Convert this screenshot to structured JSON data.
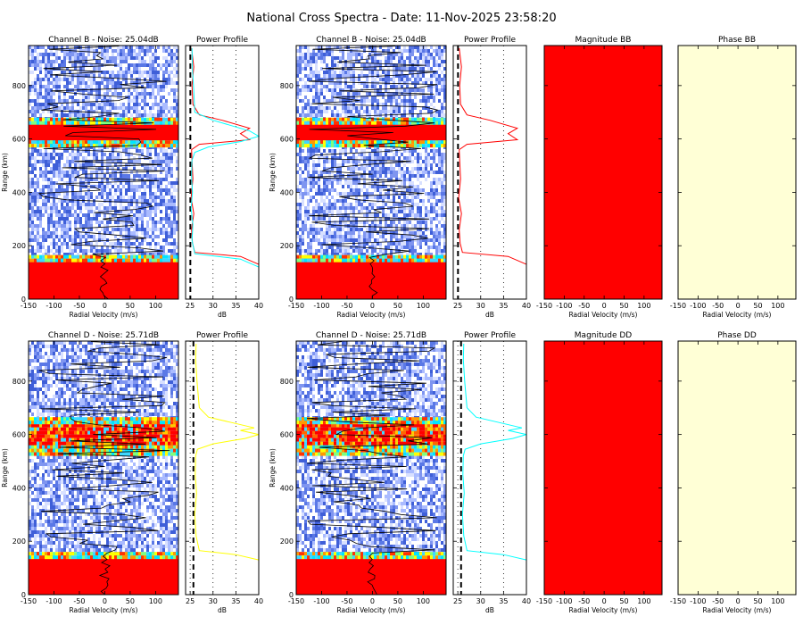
{
  "title": "National Cross Spectra - Date: 11-Nov-2025 23:58:20",
  "chart_data": [
    {
      "type": "heatmap",
      "title": "Channel B - Noise: 25.04dB",
      "xlabel": "Radial Velocity (m/s)",
      "ylabel": "Range (km)",
      "xlim": [
        -150,
        145
      ],
      "ylim": [
        0,
        950
      ],
      "xticks": [
        "-150",
        "-100",
        "-50",
        "0",
        "50",
        "100"
      ],
      "yticks": [
        "0",
        "200",
        "400",
        "600",
        "800"
      ],
      "bands": [
        {
          "from": 0,
          "to": 145,
          "level": "saturated"
        },
        {
          "from": 145,
          "to": 165,
          "level": "high"
        },
        {
          "from": 575,
          "to": 595,
          "level": "high"
        },
        {
          "from": 595,
          "to": 665,
          "level": "saturated"
        },
        {
          "from": 665,
          "to": 680,
          "level": "high"
        }
      ]
    },
    {
      "type": "line",
      "title": "Power Profile",
      "xlabel": "dB",
      "xlim": [
        24,
        40
      ],
      "ylim": [
        0,
        950
      ],
      "xticks": [
        "25",
        "30",
        "35",
        "40"
      ],
      "noise_level": 25.04,
      "series": [
        {
          "color": "#ff0000",
          "x": [
            40,
            36,
            26,
            25.5,
            25.3,
            25.8,
            25.2,
            25.6,
            25.4,
            25.3,
            27,
            38,
            36,
            38,
            32,
            27,
            25.6,
            25.4,
            25.8,
            25.3
          ],
          "y": [
            130,
            160,
            175,
            210,
            260,
            320,
            380,
            450,
            520,
            560,
            580,
            597,
            620,
            640,
            670,
            690,
            730,
            800,
            870,
            940
          ]
        },
        {
          "color": "#00ffff",
          "x": [
            40,
            36,
            26,
            25.4,
            25.6,
            25.2,
            25.5,
            25.3,
            25.4,
            26,
            29,
            36,
            40,
            38,
            34,
            30,
            26,
            25.8,
            25.5,
            25.4
          ],
          "y": [
            120,
            150,
            170,
            220,
            280,
            340,
            400,
            460,
            520,
            550,
            570,
            590,
            610,
            630,
            650,
            670,
            700,
            780,
            860,
            940
          ]
        }
      ]
    },
    {
      "type": "heatmap",
      "title": "Channel B - Noise: 25.04dB",
      "xlabel": "Radial Velocity (m/s)",
      "ylabel": "Range (km)",
      "xlim": [
        -150,
        145
      ],
      "ylim": [
        0,
        950
      ],
      "xticks": [
        "-150",
        "-100",
        "-50",
        "0",
        "50",
        "100"
      ],
      "yticks": [
        "0",
        "200",
        "400",
        "600",
        "800"
      ],
      "bands": [
        {
          "from": 0,
          "to": 145,
          "level": "saturated"
        },
        {
          "from": 145,
          "to": 165,
          "level": "high"
        },
        {
          "from": 575,
          "to": 595,
          "level": "high"
        },
        {
          "from": 595,
          "to": 665,
          "level": "saturated"
        },
        {
          "from": 665,
          "to": 680,
          "level": "high"
        }
      ]
    },
    {
      "type": "line",
      "title": "Power Profile",
      "xlabel": "dB",
      "xlim": [
        24,
        40
      ],
      "ylim": [
        0,
        950
      ],
      "xticks": [
        "25",
        "30",
        "35",
        "40"
      ],
      "noise_level": 25.04,
      "series": [
        {
          "color": "#ff0000",
          "x": [
            40,
            36,
            26,
            25.5,
            25.3,
            25.8,
            25.2,
            25.6,
            25.4,
            25.3,
            27,
            38,
            36,
            38,
            32,
            27,
            25.6,
            25.4,
            25.8,
            25.3
          ],
          "y": [
            130,
            160,
            175,
            210,
            260,
            320,
            380,
            450,
            520,
            560,
            580,
            597,
            620,
            640,
            670,
            690,
            730,
            800,
            870,
            940
          ]
        }
      ]
    },
    {
      "type": "heatmap",
      "title": "Magnitude BB",
      "xlabel": "Radial Velocity (m/s)",
      "xlim": [
        -150,
        145
      ],
      "ylim": [
        0,
        950
      ],
      "xticks": [
        "-150",
        "-100",
        "-50",
        "0",
        "50",
        "100"
      ],
      "fill": "#ff0000"
    },
    {
      "type": "heatmap",
      "title": "Phase BB",
      "xlabel": "Radial Velocity (m/s)",
      "xlim": [
        -150,
        145
      ],
      "ylim": [
        0,
        950
      ],
      "xticks": [
        "-150",
        "-100",
        "-50",
        "0",
        "50",
        "100"
      ],
      "fill": "#ffffd6"
    },
    {
      "type": "heatmap",
      "title": "Channel D - Noise: 25.71dB",
      "xlabel": "Radial Velocity (m/s)",
      "ylabel": "Range (km)",
      "xlim": [
        -150,
        145
      ],
      "ylim": [
        0,
        950
      ],
      "xticks": [
        "-150",
        "-100",
        "-50",
        "0",
        "50",
        "100"
      ],
      "yticks": [
        "0",
        "200",
        "400",
        "600",
        "800"
      ],
      "bands": [
        {
          "from": 0,
          "to": 140,
          "level": "saturated"
        },
        {
          "from": 140,
          "to": 160,
          "level": "high"
        },
        {
          "from": 530,
          "to": 560,
          "level": "high"
        },
        {
          "from": 560,
          "to": 640,
          "level": "saturated-mixed"
        },
        {
          "from": 640,
          "to": 665,
          "level": "high"
        }
      ]
    },
    {
      "type": "line",
      "title": "Power Profile",
      "xlabel": "dB",
      "xlim": [
        24,
        40
      ],
      "ylim": [
        0,
        950
      ],
      "xticks": [
        "25",
        "30",
        "35",
        "40"
      ],
      "noise_level": 25.71,
      "series": [
        {
          "color": "#ffff00",
          "x": [
            40,
            35,
            27,
            26.3,
            26,
            26.4,
            26.1,
            26.2,
            26.6,
            30,
            37,
            40,
            36,
            39,
            34,
            29,
            27,
            26.5,
            26.2,
            26.3
          ],
          "y": [
            130,
            150,
            165,
            220,
            300,
            380,
            450,
            520,
            545,
            565,
            585,
            600,
            615,
            625,
            645,
            665,
            700,
            800,
            880,
            940
          ]
        }
      ]
    },
    {
      "type": "heatmap",
      "title": "Channel D - Noise: 25.71dB",
      "xlabel": "Radial Velocity (m/s)",
      "ylabel": "Range (km)",
      "xlim": [
        -150,
        145
      ],
      "ylim": [
        0,
        950
      ],
      "xticks": [
        "-150",
        "-100",
        "-50",
        "0",
        "50",
        "100"
      ],
      "yticks": [
        "0",
        "200",
        "400",
        "600",
        "800"
      ],
      "bands": [
        {
          "from": 0,
          "to": 140,
          "level": "saturated"
        },
        {
          "from": 140,
          "to": 160,
          "level": "high"
        },
        {
          "from": 530,
          "to": 560,
          "level": "high"
        },
        {
          "from": 560,
          "to": 640,
          "level": "saturated-mixed"
        },
        {
          "from": 640,
          "to": 665,
          "level": "high"
        }
      ]
    },
    {
      "type": "line",
      "title": "Power Profile",
      "xlabel": "dB",
      "xlim": [
        24,
        40
      ],
      "ylim": [
        0,
        950
      ],
      "xticks": [
        "25",
        "30",
        "35",
        "40"
      ],
      "noise_level": 25.71,
      "series": [
        {
          "color": "#00ffff",
          "x": [
            40,
            35,
            27,
            26.3,
            26,
            26.4,
            26.1,
            26.2,
            26.6,
            30,
            37,
            40,
            36,
            39,
            34,
            29,
            27,
            26.5,
            26.2,
            26.3
          ],
          "y": [
            130,
            150,
            165,
            220,
            300,
            380,
            450,
            520,
            545,
            565,
            585,
            600,
            615,
            625,
            645,
            665,
            700,
            800,
            880,
            940
          ]
        }
      ]
    },
    {
      "type": "heatmap",
      "title": "Magnitude DD",
      "xlabel": "Radial Velocity (m/s)",
      "xlim": [
        -150,
        145
      ],
      "ylim": [
        0,
        950
      ],
      "xticks": [
        "-150",
        "-100",
        "-50",
        "0",
        "50",
        "100"
      ],
      "fill": "#ff0000"
    },
    {
      "type": "heatmap",
      "title": "Phase DD",
      "xlabel": "Radial Velocity (m/s)",
      "xlim": [
        -150,
        145
      ],
      "ylim": [
        0,
        950
      ],
      "xticks": [
        "-150",
        "-100",
        "-50",
        "0",
        "50",
        "100"
      ],
      "fill": "#ffffd6"
    }
  ]
}
